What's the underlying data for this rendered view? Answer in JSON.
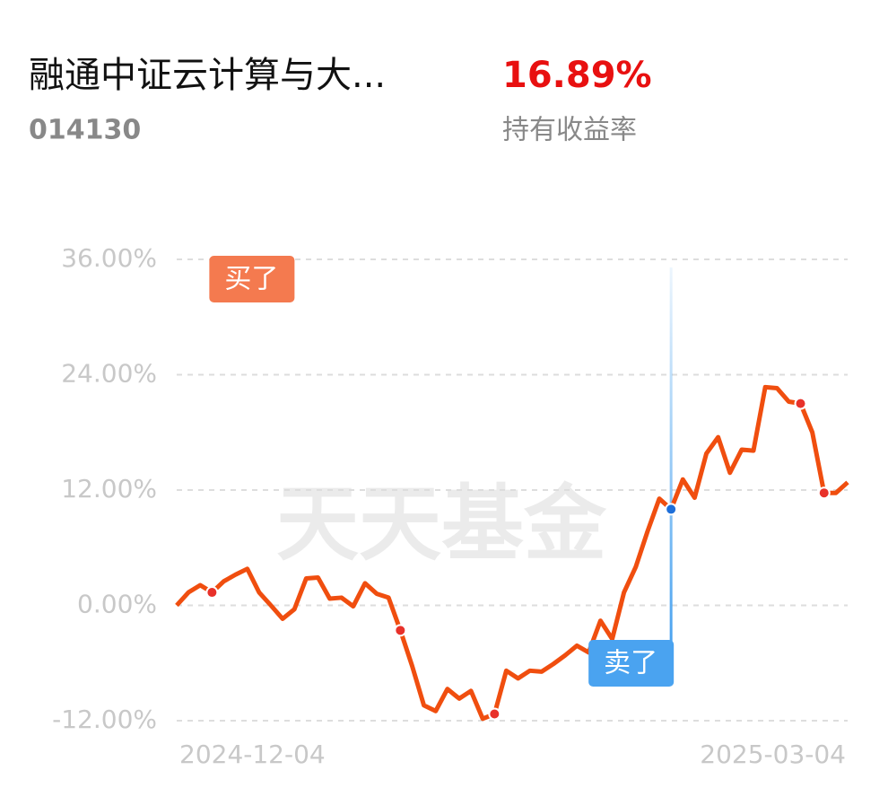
{
  "header": {
    "fund_name": "融通中证云计算与大...",
    "fund_code": "014130",
    "return": "16.89%",
    "return_label": "持有收益率"
  },
  "chart_data": {
    "type": "line",
    "watermark": "天天基金",
    "categories": [
      "2024-12-04",
      null,
      null,
      null,
      null,
      null,
      null,
      null,
      null,
      null,
      null,
      null,
      null,
      null,
      null,
      null,
      null,
      null,
      null,
      null,
      null,
      null,
      null,
      null,
      null,
      null,
      null,
      null,
      null,
      null,
      null,
      null,
      null,
      null,
      null,
      null,
      null,
      null,
      null,
      null,
      null,
      null,
      null,
      null,
      null,
      null,
      null,
      null,
      null,
      null,
      null,
      null,
      null,
      null,
      null,
      null,
      null,
      "2025-03-04"
    ],
    "values": [
      0.0,
      1.35,
      2.1,
      1.35,
      2.5,
      3.2,
      3.8,
      1.35,
      0.0,
      -1.4,
      -0.4,
      2.8,
      2.9,
      0.7,
      0.8,
      -0.1,
      2.3,
      1.2,
      0.8,
      -2.6,
      -6.3,
      -10.4,
      -11.0,
      -8.7,
      -9.7,
      -8.9,
      -11.8,
      -11.3,
      -6.8,
      -7.6,
      -6.8,
      -6.9,
      -6.1,
      -5.2,
      -4.2,
      -4.9,
      -1.6,
      -3.5,
      1.35,
      4.0,
      7.7,
      11.1,
      10.0,
      13.1,
      11.2,
      15.8,
      17.5,
      13.8,
      16.2,
      16.1,
      22.7,
      22.6,
      21.2,
      21.0,
      18.0,
      11.7,
      11.7,
      12.8
    ],
    "color": "#f04e0f",
    "ylim": [
      -12,
      36
    ],
    "yticks": [
      {
        "value": -12,
        "label": "-12.00%"
      },
      {
        "value": 0,
        "label": "0.00%"
      },
      {
        "value": 12,
        "label": "12.00%"
      },
      {
        "value": 24,
        "label": "24.00%"
      },
      {
        "value": 36,
        "label": "36.00%"
      }
    ],
    "grid": true,
    "highlight_points": [
      3,
      19,
      27,
      53,
      55
    ],
    "annotations": [
      {
        "label": "买了",
        "index": 3,
        "color": "#f47a4f"
      },
      {
        "label": "卖了",
        "index": 42,
        "color": "#4aa3f0"
      }
    ]
  }
}
